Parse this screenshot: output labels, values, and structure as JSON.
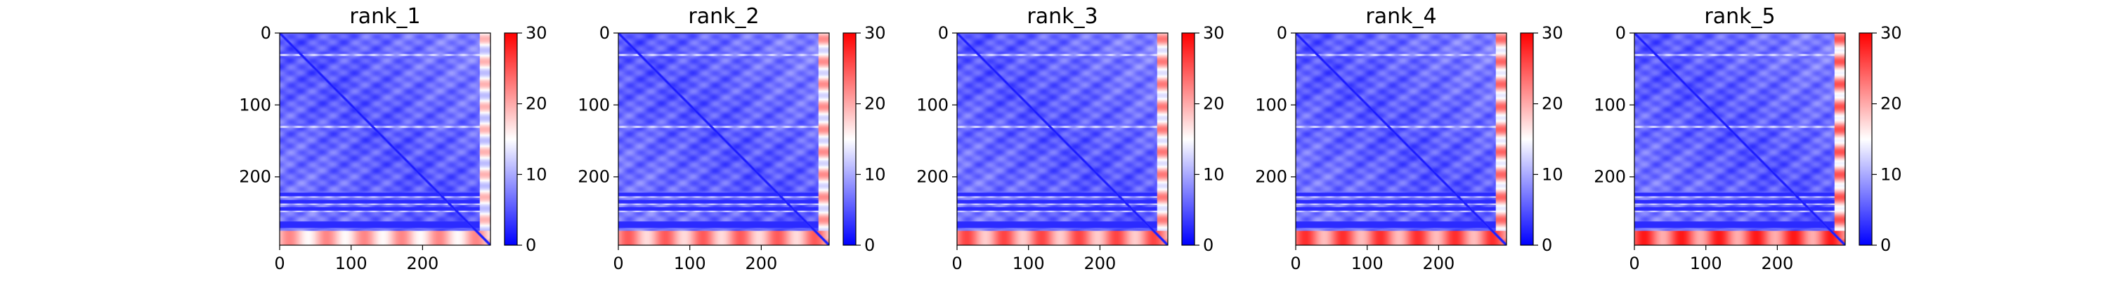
{
  "chart_data": {
    "type": "heatmap",
    "colormap": "bwr",
    "colorbar": {
      "ticks": [
        0,
        10,
        20,
        30
      ],
      "vmin": 0,
      "vmax": 30
    },
    "matrix_size": 295,
    "x_ticks": [
      0,
      100,
      200
    ],
    "y_ticks": [
      0,
      100,
      200
    ],
    "panels": [
      {
        "title": "rank_1",
        "artifact_level": 0.85
      },
      {
        "title": "rank_2",
        "artifact_level": 0.95
      },
      {
        "title": "rank_3",
        "artifact_level": 1.0
      },
      {
        "title": "rank_4",
        "artifact_level": 1.05
      },
      {
        "title": "rank_5",
        "artifact_level": 1.1
      }
    ],
    "features": {
      "diagonal_value": 1,
      "background_value": 5,
      "bright_rows": [
        30,
        130,
        227,
        237,
        247
      ],
      "dark_bands": [
        [
          222,
          226
        ],
        [
          232,
          236
        ],
        [
          242,
          246
        ],
        [
          262,
          270
        ]
      ],
      "hot_bottom_rows": [
        [
          275,
          295
        ]
      ],
      "hot_right_cols": [
        [
          280,
          295
        ]
      ]
    }
  },
  "colors": {
    "low": "#0000ff",
    "mid": "#ffffff",
    "high": "#ff0000"
  }
}
